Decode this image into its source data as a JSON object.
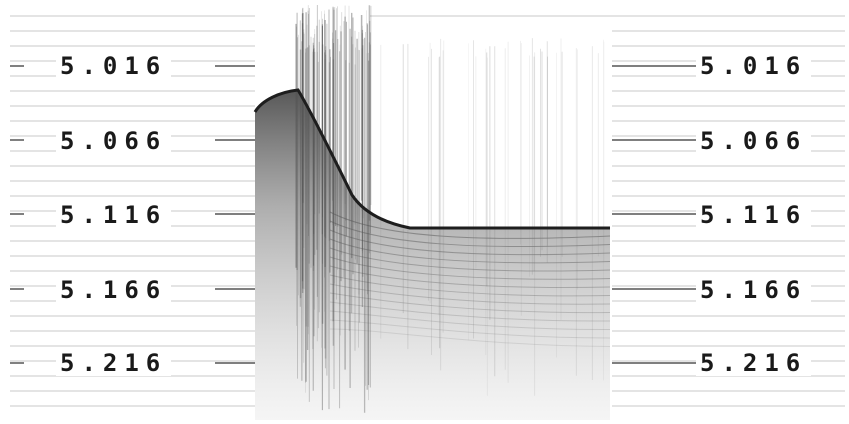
{
  "colors": {
    "background": "#ffffff",
    "grid": "#c8c8c8",
    "tick": "#555555",
    "seafloor": "#1e1e1e",
    "text": "#1a1a1a"
  },
  "depth_scale": {
    "left_labels": [
      "5.016",
      "5.066",
      "5.116",
      "5.166",
      "5.216"
    ],
    "right_labels": [
      "5.016",
      "5.066",
      "5.116",
      "5.166",
      "5.216"
    ]
  }
}
